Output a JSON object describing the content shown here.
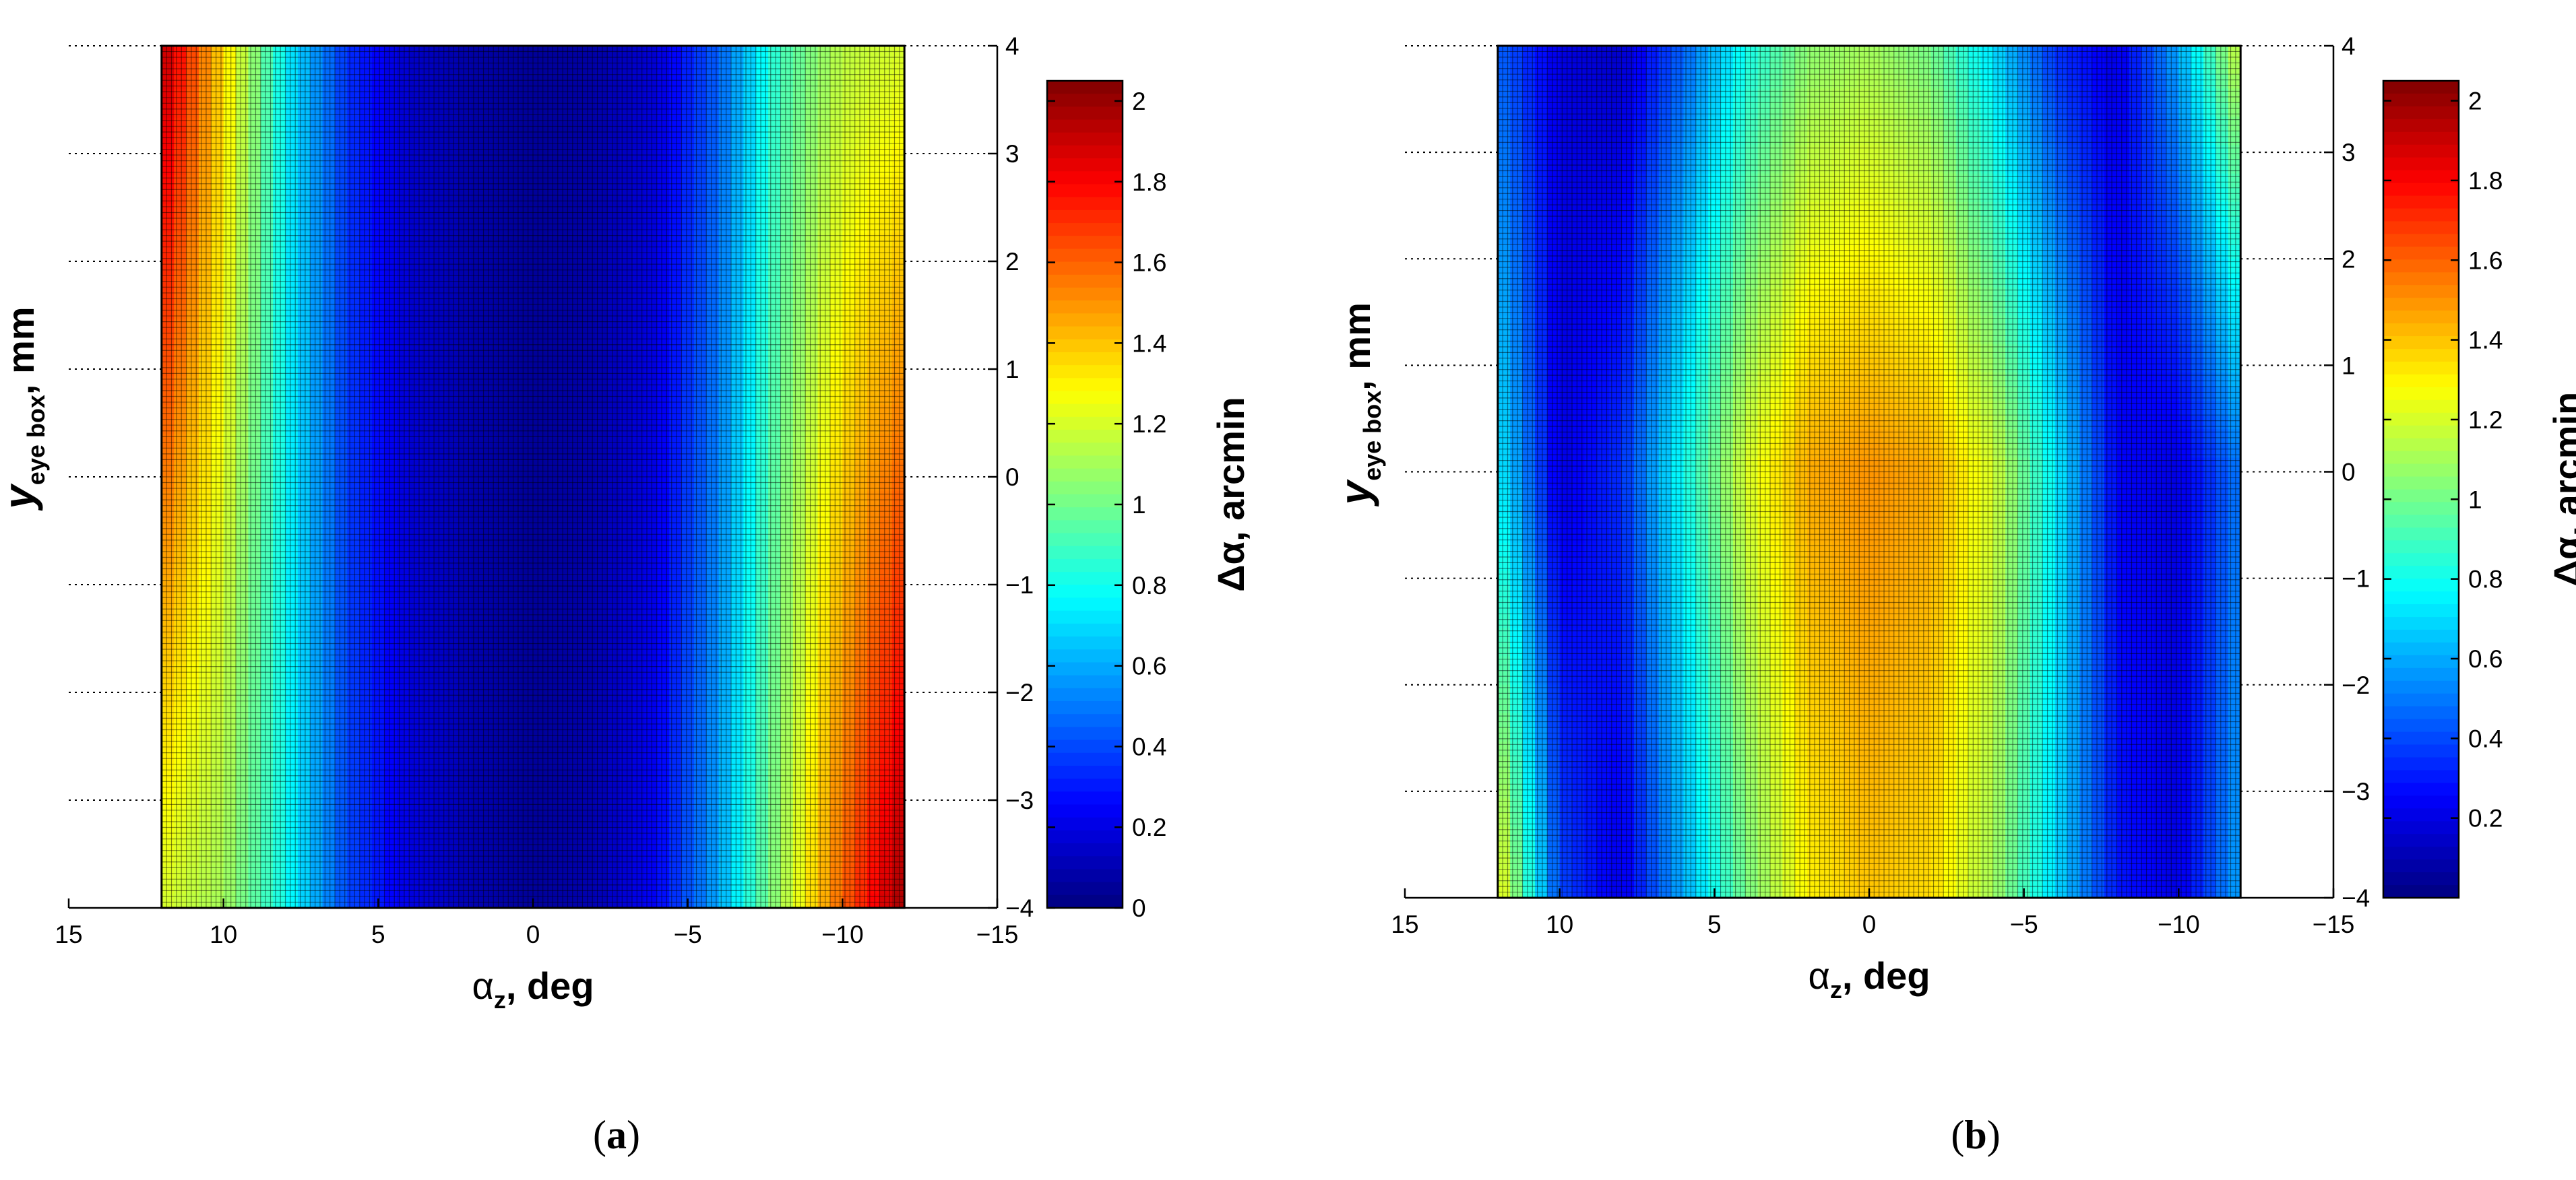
{
  "chart_data": [
    {
      "panel": "(a)",
      "panel_letter": "a",
      "type": "heatmap",
      "xlabel": "αz, deg",
      "xlabel_main": "α",
      "xlabel_sub": "z",
      "xlabel_rest": ", deg",
      "ylabel": "yeye box, mm",
      "ylabel_main": "y",
      "ylabel_sub": "eye box",
      "ylabel_rest": ", mm",
      "colorbar_label": "Δα, arcmin",
      "xlim": [
        15,
        -15
      ],
      "ylim": [
        -4,
        4
      ],
      "x_reversed": true,
      "data_x_range": [
        12,
        -12
      ],
      "data_y_range": [
        -4,
        4
      ],
      "x_ticks": [
        "15",
        "10",
        "5",
        "0",
        "−5",
        "−10",
        "−15"
      ],
      "x_tick_values": [
        15,
        10,
        5,
        0,
        -5,
        -10,
        -15
      ],
      "y_ticks": [
        "4",
        "3",
        "2",
        "1",
        "0",
        "−1",
        "−2",
        "−3",
        "−4"
      ],
      "y_tick_values": [
        4,
        3,
        2,
        1,
        0,
        -1,
        -2,
        -3,
        -4
      ],
      "colorbar_ticks": [
        "2",
        "1.8",
        "1.6",
        "1.4",
        "1.2",
        "1",
        "0.8",
        "0.6",
        "0.4",
        "0.2",
        "0"
      ],
      "colorbar_tick_values": [
        2,
        1.8,
        1.6,
        1.4,
        1.2,
        1,
        0.8,
        0.6,
        0.4,
        0.2,
        0
      ],
      "clim": [
        0,
        2.05
      ],
      "grid": true,
      "colormap": "jet",
      "value_profile_x": [
        12,
        10,
        8,
        6,
        4,
        2,
        0,
        -2,
        -4,
        -6,
        -8,
        -10,
        -12
      ],
      "value_profile_y_top": [
        1.95,
        1.35,
        0.75,
        0.35,
        0.15,
        0.08,
        0.05,
        0.08,
        0.18,
        0.45,
        0.9,
        1.15,
        1.2
      ],
      "value_profile_y_bottom": [
        1.2,
        1.1,
        0.8,
        0.4,
        0.2,
        0.1,
        0.05,
        0.1,
        0.25,
        0.6,
        1.1,
        1.6,
        2.0
      ]
    },
    {
      "panel": "(b)",
      "panel_letter": "b",
      "type": "heatmap",
      "xlabel": "αz, deg",
      "xlabel_main": "α",
      "xlabel_sub": "z",
      "xlabel_rest": ", deg",
      "ylabel": "yeye box, mm",
      "ylabel_main": "y",
      "ylabel_sub": "eye box",
      "ylabel_rest": ", mm",
      "colorbar_label": "Δα, arcmin",
      "xlim": [
        15,
        -15
      ],
      "ylim": [
        -4,
        4
      ],
      "x_reversed": true,
      "data_x_range": [
        12,
        -12
      ],
      "data_y_range": [
        -4,
        4
      ],
      "x_ticks": [
        "15",
        "10",
        "5",
        "0",
        "−5",
        "−10",
        "−15"
      ],
      "x_tick_values": [
        15,
        10,
        5,
        0,
        -5,
        -10,
        -15
      ],
      "y_ticks": [
        "4",
        "3",
        "2",
        "1",
        "0",
        "−1",
        "−2",
        "−3",
        "−4"
      ],
      "y_tick_values": [
        4,
        3,
        2,
        1,
        0,
        -1,
        -2,
        -3,
        -4
      ],
      "colorbar_ticks": [
        "2",
        "1.8",
        "1.6",
        "1.4",
        "1.2",
        "1",
        "0.8",
        "0.6",
        "0.4",
        "0.2"
      ],
      "colorbar_tick_values": [
        2,
        1.8,
        1.6,
        1.4,
        1.2,
        1,
        0.8,
        0.6,
        0.4,
        0.2
      ],
      "clim": [
        0,
        2.05
      ],
      "grid": true,
      "colormap": "jet",
      "value_profile_x": [
        12,
        10,
        8,
        6,
        4,
        2,
        0,
        -2,
        -4,
        -6,
        -8,
        -10,
        -12
      ],
      "value_profile_y_top": [
        0.45,
        0.2,
        0.15,
        0.45,
        0.8,
        1.05,
        1.1,
        1.0,
        0.7,
        0.35,
        0.2,
        0.6,
        1.2
      ],
      "value_profile_y_middle": [
        0.75,
        0.2,
        0.35,
        0.8,
        1.2,
        1.45,
        1.5,
        1.45,
        1.2,
        0.75,
        0.25,
        0.2,
        0.5
      ],
      "value_profile_y_bottom": [
        1.3,
        0.4,
        0.2,
        0.6,
        1.0,
        1.3,
        1.4,
        1.35,
        1.1,
        0.7,
        0.3,
        0.2,
        0.6
      ]
    }
  ]
}
